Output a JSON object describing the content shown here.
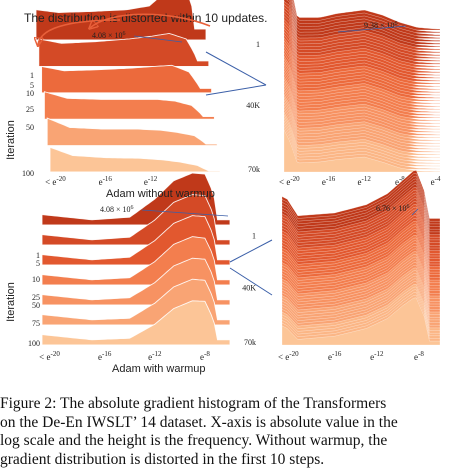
{
  "figure": {
    "annotation": "The distribution is distorted within 10 updates.",
    "caption_lines": [
      "Figure 2: The absolute gradient histogram of the Transformers",
      "on the De-En IWSLT’ 14 dataset. X-axis is absolute value in the",
      "log scale and the height is the frequency. Without warmup, the",
      "gradient distribution is distorted in the first 10 steps."
    ]
  },
  "colors": {
    "dark": "#c0391a",
    "mid": "#e8603a",
    "light": "#f7a878",
    "lightest": "#fbc9a0",
    "connector": "#3b5fa8"
  },
  "chart_data": [
    {
      "id": "adam-no-warmup-left",
      "type": "area",
      "group_label": "Adam without warmup",
      "ylabel": "Iteration",
      "y_ticks": [
        "1",
        "5",
        "10",
        "25",
        "50",
        "100"
      ],
      "x_ticks": [
        "< e^-20",
        "e^-16",
        "e^-12",
        "e^-8"
      ],
      "x_domain": [
        -21,
        -6
      ],
      "peak_label": "4.08 × 10^6",
      "series": [
        {
          "name": "1",
          "values": [
            [
              -21,
              0.55
            ],
            [
              -19,
              0.5
            ],
            [
              -16,
              0.52
            ],
            [
              -13,
              0.55
            ],
            [
              -11,
              0.62
            ],
            [
              -10,
              0.8
            ],
            [
              -9,
              1.0
            ],
            [
              -8,
              0.95
            ],
            [
              -7.3,
              0.7
            ],
            [
              -7,
              0.2
            ]
          ]
        },
        {
          "name": "5",
          "values": [
            [
              -21,
              0.5
            ],
            [
              -19,
              0.42
            ],
            [
              -16,
              0.45
            ],
            [
              -13,
              0.5
            ],
            [
              -11,
              0.55
            ],
            [
              -9.5,
              0.6
            ],
            [
              -8,
              0.5
            ],
            [
              -7.3,
              0.25
            ],
            [
              -7,
              0.1
            ]
          ]
        },
        {
          "name": "10",
          "values": [
            [
              -21,
              0.48
            ],
            [
              -19,
              0.4
            ],
            [
              -16,
              0.42
            ],
            [
              -13,
              0.45
            ],
            [
              -11,
              0.48
            ],
            [
              -9.5,
              0.5
            ],
            [
              -8,
              0.38
            ],
            [
              -7.3,
              0.18
            ],
            [
              -7,
              0.08
            ]
          ]
        },
        {
          "name": "25",
          "values": [
            [
              -21,
              0.5
            ],
            [
              -19,
              0.38
            ],
            [
              -16,
              0.36
            ],
            [
              -13,
              0.36
            ],
            [
              -11,
              0.36
            ],
            [
              -9.5,
              0.33
            ],
            [
              -8,
              0.25
            ],
            [
              -7.3,
              0.12
            ],
            [
              -7,
              0.05
            ]
          ]
        },
        {
          "name": "50",
          "values": [
            [
              -21,
              0.5
            ],
            [
              -19,
              0.33
            ],
            [
              -16,
              0.3
            ],
            [
              -13,
              0.3
            ],
            [
              -11,
              0.28
            ],
            [
              -9.5,
              0.24
            ],
            [
              -8,
              0.18
            ],
            [
              -7.3,
              0.08
            ],
            [
              -7,
              0.03
            ]
          ]
        },
        {
          "name": "100",
          "values": [
            [
              -21,
              0.45
            ],
            [
              -19,
              0.3
            ],
            [
              -16,
              0.26
            ],
            [
              -13,
              0.25
            ],
            [
              -11,
              0.22
            ],
            [
              -9.5,
              0.18
            ],
            [
              -8,
              0.12
            ],
            [
              -7.3,
              0.05
            ],
            [
              -7,
              0.02
            ]
          ]
        }
      ]
    },
    {
      "id": "adam-no-warmup-right",
      "type": "area",
      "y_ticks": [
        "1",
        "40K",
        "70k"
      ],
      "x_ticks": [
        "< e^-20",
        "e^-16",
        "e^-12",
        "e^-8",
        "e^-4"
      ],
      "x_domain": [
        -21,
        -3.5
      ],
      "peak_label": "9.38 × 10^6",
      "series": [
        {
          "name": "1",
          "values": [
            [
              -21,
              1.0
            ],
            [
              -20.3,
              0.95
            ],
            [
              -19.5,
              0.25
            ],
            [
              -17,
              0.25
            ],
            [
              -15,
              0.33
            ],
            [
              -12,
              0.4
            ],
            [
              -10,
              0.3
            ],
            [
              -8,
              0.15
            ],
            [
              -6,
              0.05
            ],
            [
              -4,
              0.02
            ]
          ]
        },
        {
          "name": "40K",
          "values": [
            [
              -21,
              0.9
            ],
            [
              -20.3,
              0.7
            ],
            [
              -19.5,
              0.2
            ],
            [
              -17,
              0.22
            ],
            [
              -15,
              0.28
            ],
            [
              -12,
              0.35
            ],
            [
              -10,
              0.24
            ],
            [
              -8,
              0.1
            ],
            [
              -6,
              0.03
            ],
            [
              -4,
              0.01
            ]
          ]
        },
        {
          "name": "70k",
          "values": [
            [
              -21,
              0.85
            ],
            [
              -20.3,
              0.6
            ],
            [
              -19.5,
              0.18
            ],
            [
              -17,
              0.2
            ],
            [
              -15,
              0.25
            ],
            [
              -12,
              0.3
            ],
            [
              -10,
              0.2
            ],
            [
              -8,
              0.08
            ],
            [
              -6,
              0.02
            ],
            [
              -4,
              0.01
            ]
          ]
        }
      ]
    },
    {
      "id": "adam-warmup-left",
      "type": "area",
      "group_label": "Adam with warmup",
      "ylabel": "Iteration",
      "y_ticks": [
        "1",
        "5",
        "10",
        "25",
        "50",
        "75",
        "100"
      ],
      "x_ticks": [
        "< e^-20",
        "e^-16",
        "e^-12",
        "e^-8"
      ],
      "x_domain": [
        -21,
        -6
      ],
      "peak_label": "4.08 × 10^6",
      "series": [
        {
          "name": "1",
          "values": [
            [
              -21,
              0.2
            ],
            [
              -17,
              0.1
            ],
            [
              -14,
              0.15
            ],
            [
              -12,
              0.5
            ],
            [
              -10.5,
              0.85
            ],
            [
              -9,
              1.0
            ],
            [
              -8,
              0.98
            ],
            [
              -7.3,
              0.6
            ],
            [
              -7,
              0.1
            ]
          ]
        },
        {
          "name": "5",
          "values": [
            [
              -21,
              0.2
            ],
            [
              -17,
              0.1
            ],
            [
              -14,
              0.15
            ],
            [
              -12,
              0.48
            ],
            [
              -10.5,
              0.82
            ],
            [
              -9,
              0.97
            ],
            [
              -8,
              0.95
            ],
            [
              -7.3,
              0.58
            ],
            [
              -7,
              0.1
            ]
          ]
        },
        {
          "name": "10",
          "values": [
            [
              -21,
              0.2
            ],
            [
              -17,
              0.1
            ],
            [
              -14,
              0.15
            ],
            [
              -12,
              0.47
            ],
            [
              -10.5,
              0.8
            ],
            [
              -9,
              0.95
            ],
            [
              -8,
              0.93
            ],
            [
              -7.3,
              0.56
            ],
            [
              -7,
              0.1
            ]
          ]
        },
        {
          "name": "25",
          "values": [
            [
              -21,
              0.2
            ],
            [
              -17,
              0.1
            ],
            [
              -14,
              0.14
            ],
            [
              -12,
              0.45
            ],
            [
              -10.5,
              0.78
            ],
            [
              -9,
              0.93
            ],
            [
              -8,
              0.9
            ],
            [
              -7.3,
              0.55
            ],
            [
              -7,
              0.1
            ]
          ]
        },
        {
          "name": "50",
          "values": [
            [
              -21,
              0.2
            ],
            [
              -17,
              0.1
            ],
            [
              -14,
              0.14
            ],
            [
              -12,
              0.43
            ],
            [
              -10.5,
              0.75
            ],
            [
              -9,
              0.9
            ],
            [
              -8,
              0.88
            ],
            [
              -7.3,
              0.53
            ],
            [
              -7,
              0.1
            ]
          ]
        },
        {
          "name": "75",
          "values": [
            [
              -21,
              0.2
            ],
            [
              -17,
              0.1
            ],
            [
              -14,
              0.13
            ],
            [
              -12,
              0.42
            ],
            [
              -10.5,
              0.73
            ],
            [
              -9,
              0.88
            ],
            [
              -8,
              0.86
            ],
            [
              -7.3,
              0.5
            ],
            [
              -7,
              0.1
            ]
          ]
        },
        {
          "name": "100",
          "values": [
            [
              -21,
              0.2
            ],
            [
              -17,
              0.1
            ],
            [
              -14,
              0.13
            ],
            [
              -12,
              0.4
            ],
            [
              -10.5,
              0.7
            ],
            [
              -9,
              0.85
            ],
            [
              -8,
              0.84
            ],
            [
              -7.3,
              0.48
            ],
            [
              -7,
              0.1
            ]
          ]
        }
      ]
    },
    {
      "id": "adam-warmup-right",
      "type": "area",
      "y_ticks": [
        "1",
        "40K",
        "70k"
      ],
      "x_ticks": [
        "< e^-20",
        "e^-16",
        "e^-12",
        "e^-8"
      ],
      "x_domain": [
        -21,
        -6
      ],
      "peak_label": "6.76 × 10^6",
      "series": [
        {
          "name": "1",
          "values": [
            [
              -21,
              0.5
            ],
            [
              -20.5,
              0.45
            ],
            [
              -19.5,
              0.15
            ],
            [
              -16,
              0.2
            ],
            [
              -13,
              0.35
            ],
            [
              -11,
              0.55
            ],
            [
              -9.5,
              0.8
            ],
            [
              -8.3,
              1.0
            ],
            [
              -7.5,
              0.6
            ],
            [
              -7,
              0.1
            ]
          ]
        },
        {
          "name": "40K",
          "values": [
            [
              -21,
              0.4
            ],
            [
              -20.5,
              0.35
            ],
            [
              -19.5,
              0.12
            ],
            [
              -16,
              0.18
            ],
            [
              -13,
              0.32
            ],
            [
              -11,
              0.5
            ],
            [
              -9.5,
              0.75
            ],
            [
              -8.3,
              0.92
            ],
            [
              -7.5,
              0.55
            ],
            [
              -7,
              0.08
            ]
          ]
        },
        {
          "name": "70k",
          "values": [
            [
              -21,
              0.35
            ],
            [
              -20.5,
              0.3
            ],
            [
              -19.5,
              0.1
            ],
            [
              -16,
              0.16
            ],
            [
              -13,
              0.3
            ],
            [
              -11,
              0.48
            ],
            [
              -9.5,
              0.72
            ],
            [
              -8.3,
              0.88
            ],
            [
              -7.5,
              0.52
            ],
            [
              -7,
              0.07
            ]
          ]
        }
      ]
    }
  ]
}
